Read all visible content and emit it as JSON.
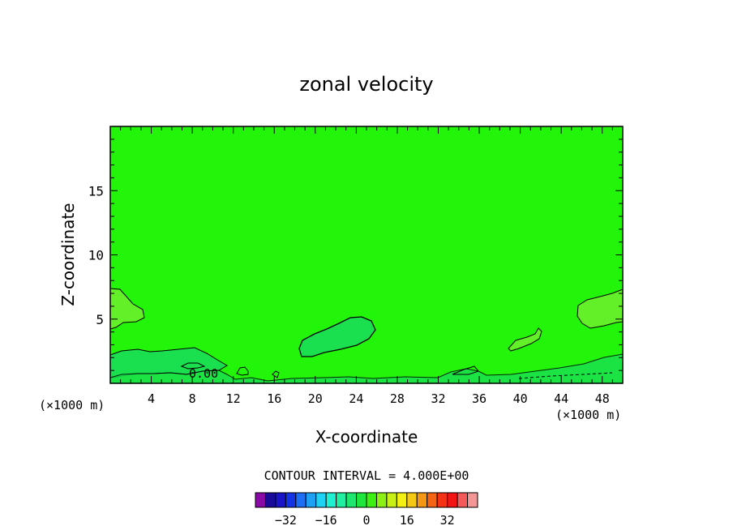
{
  "chart_data": {
    "type": "contour",
    "title": "zonal velocity",
    "xlabel": "X-coordinate",
    "ylabel": "Z-coordinate",
    "x_unit_left": "(×1000 m)",
    "x_unit_right": "(×1000 m)",
    "xlim": [
      0,
      50
    ],
    "ylim": [
      0,
      20
    ],
    "x_ticks": [
      4,
      8,
      12,
      16,
      20,
      24,
      28,
      32,
      36,
      40,
      44,
      48
    ],
    "y_ticks": [
      5,
      10,
      15
    ],
    "field_color": "#22f50a",
    "contour_interval_text": "CONTOUR INTERVAL = 4.000E+00",
    "contour_label": "0.00",
    "colorbar": {
      "colors": [
        "#8a0aa8",
        "#1a0a9a",
        "#1a14c8",
        "#1432e6",
        "#1e6ef5",
        "#1ea0f5",
        "#1ed2f5",
        "#1ef0d2",
        "#1ef0a0",
        "#1ee66e",
        "#1ee63c",
        "#3cf014",
        "#8cf014",
        "#c8f014",
        "#f5f014",
        "#f5c814",
        "#f59614",
        "#f56414",
        "#f53214",
        "#f51414",
        "#f55a5a",
        "#f59696"
      ],
      "ticks": [
        "-32",
        "-16",
        "0",
        "16",
        "32"
      ],
      "tick_values": [
        -32,
        -16,
        0,
        16,
        32
      ],
      "vmin": -44,
      "vmax": 44
    },
    "features": [
      {
        "name": "near-surface-negative-layer",
        "value_range": [
          -4,
          0
        ]
      },
      {
        "name": "mid-domain-blob",
        "value_range": [
          -4,
          0
        ]
      },
      {
        "name": "left-edge-positive-blob",
        "value_range": [
          0,
          4
        ]
      },
      {
        "name": "right-edge-positive-blob",
        "value_range": [
          0,
          4
        ]
      }
    ]
  }
}
